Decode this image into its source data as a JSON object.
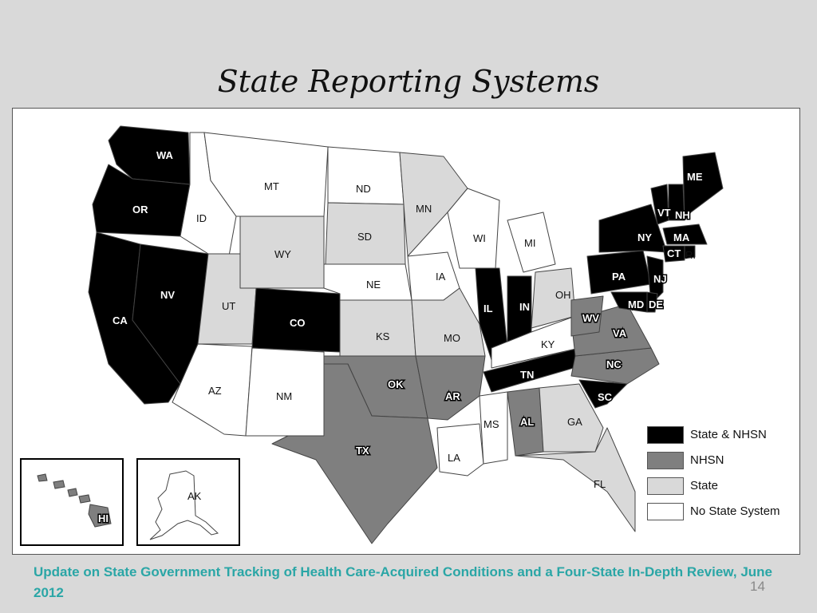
{
  "slide": {
    "title": "State Reporting Systems",
    "caption": "Update on State Government Tracking of Health Care-Acquired Conditions and a Four-State In-Depth Review, June 2012",
    "page_number": "14"
  },
  "colors": {
    "state_nhsn": "#000000",
    "nhsn": "#7f7f7f",
    "state": "#d9d9d9",
    "no_state_system": "#ffffff"
  },
  "legend": [
    {
      "label": "State & NHSN",
      "category": "state_nhsn"
    },
    {
      "label": "NHSN",
      "category": "nhsn"
    },
    {
      "label": "State",
      "category": "state"
    },
    {
      "label": "No State System",
      "category": "no_state_system"
    }
  ],
  "states": {
    "WA": "state_nhsn",
    "OR": "state_nhsn",
    "CA": "state_nhsn",
    "NV": "state_nhsn",
    "ID": "no_state_system",
    "MT": "no_state_system",
    "WY": "state",
    "UT": "state",
    "AZ": "no_state_system",
    "CO": "state_nhsn",
    "NM": "no_state_system",
    "ND": "no_state_system",
    "SD": "state",
    "NE": "no_state_system",
    "KS": "state",
    "OK": "nhsn",
    "TX": "nhsn",
    "MN": "state",
    "IA": "no_state_system",
    "MO": "state",
    "AR": "nhsn",
    "LA": "no_state_system",
    "WI": "no_state_system",
    "IL": "state_nhsn",
    "MI": "no_state_system",
    "IN": "state_nhsn",
    "OH": "state",
    "KY": "no_state_system",
    "TN": "state_nhsn",
    "MS": "no_state_system",
    "AL": "nhsn",
    "GA": "state",
    "FL": "state",
    "SC": "state_nhsn",
    "NC": "nhsn",
    "VA": "nhsn",
    "WV": "nhsn",
    "PA": "state_nhsn",
    "NY": "state_nhsn",
    "VT": "state_nhsn",
    "NH": "state_nhsn",
    "ME": "state_nhsn",
    "MA": "state_nhsn",
    "CT": "state_nhsn",
    "RI": "state_nhsn",
    "NJ": "state_nhsn",
    "DE": "state_nhsn",
    "MD": "state_nhsn",
    "AK": "no_state_system",
    "HI": "nhsn"
  }
}
